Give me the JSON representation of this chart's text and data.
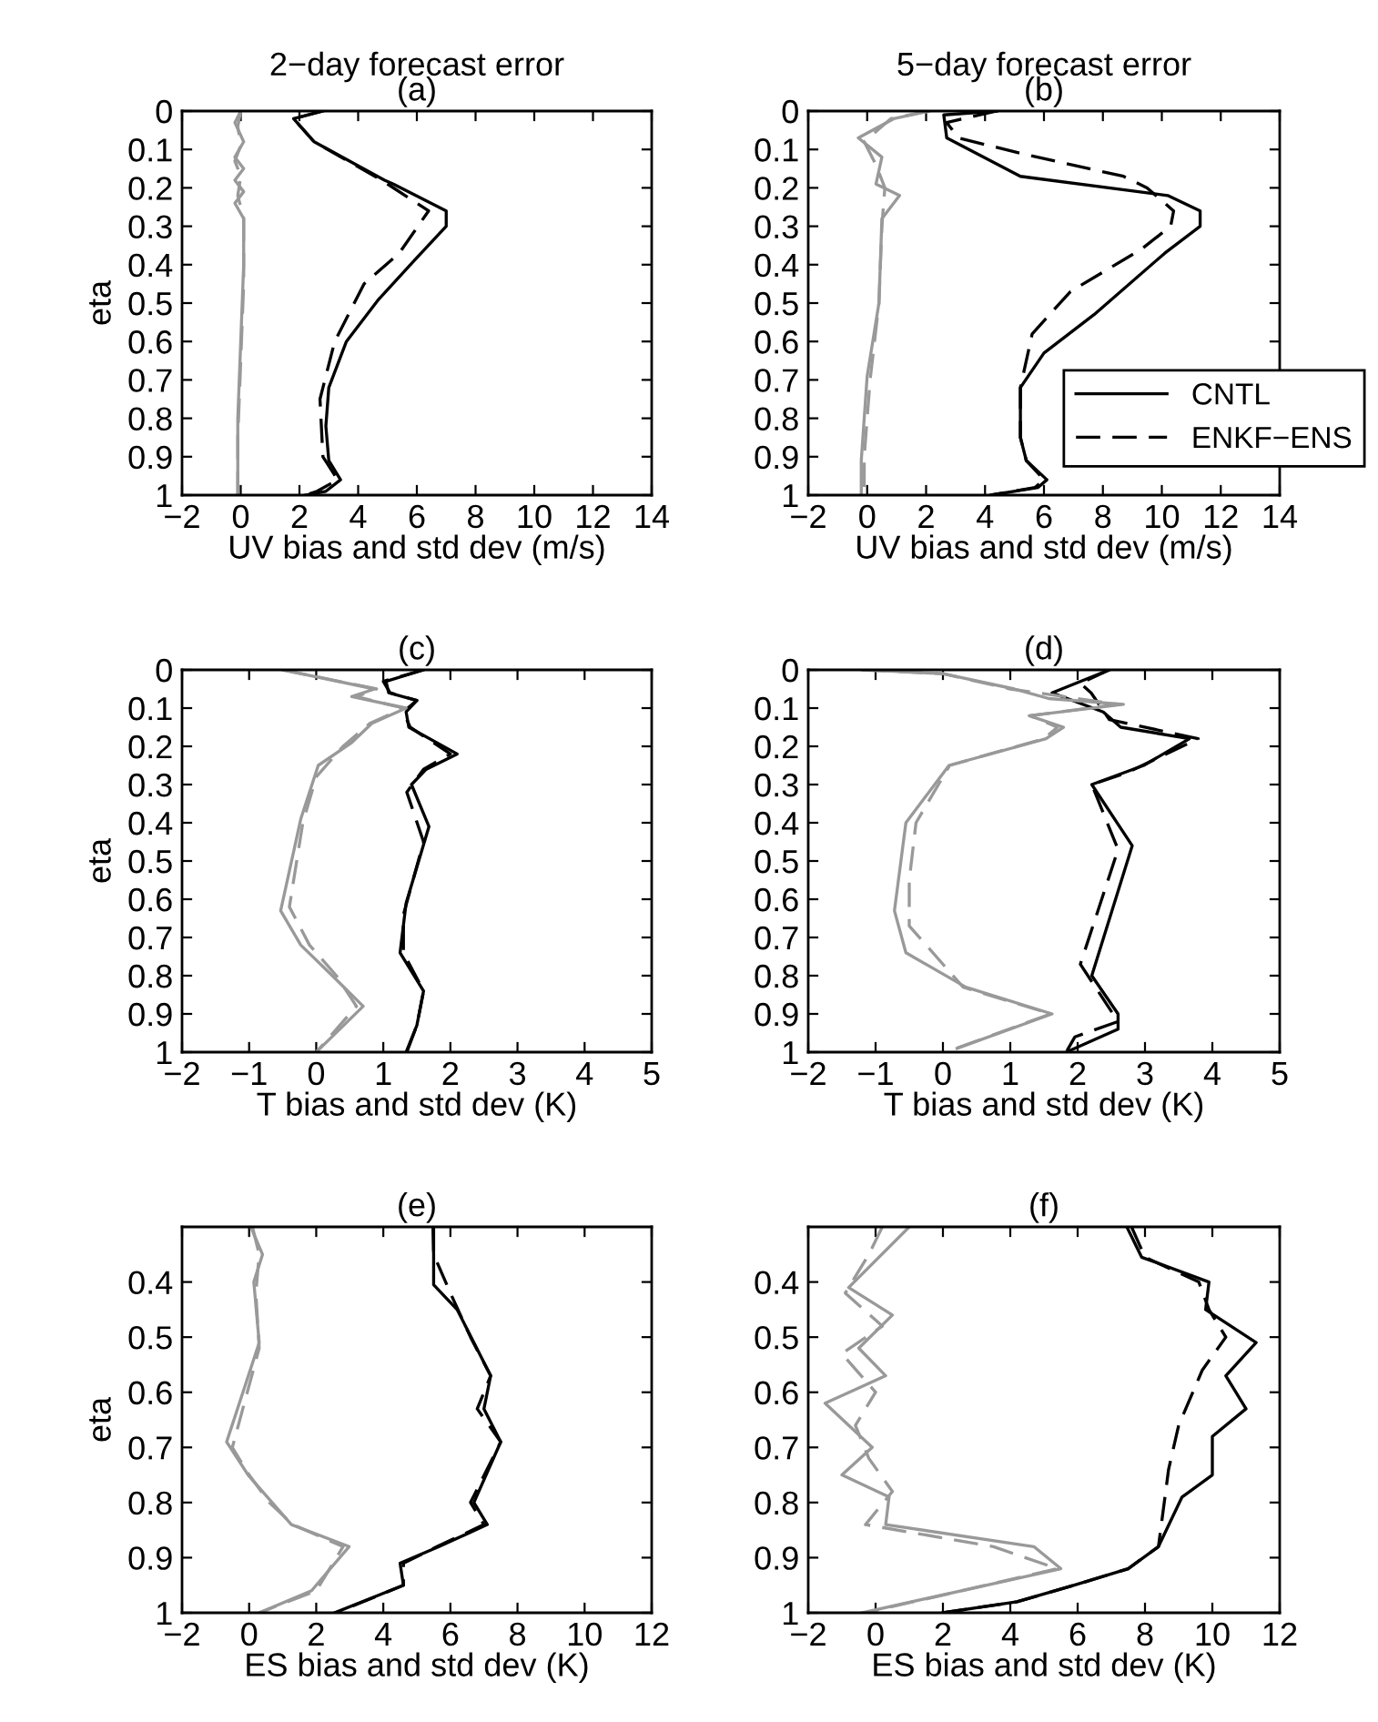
{
  "chart_data": [
    {
      "type": "line",
      "title": "2−day forecast error",
      "subtitle": "(a)",
      "xlabel": "UV bias and std dev (m/s)",
      "ylabel": "eta",
      "xlim": [
        -2,
        14
      ],
      "xticks": [
        -2,
        0,
        2,
        4,
        6,
        8,
        10,
        12,
        14
      ],
      "ylim": [
        1,
        0
      ],
      "yticks": [
        0,
        0.1,
        0.2,
        0.3,
        0.4,
        0.5,
        0.6,
        0.7,
        0.8,
        0.9,
        1
      ],
      "series": [
        {
          "color": "#000000",
          "line_style": "solid",
          "x": [
            2.8,
            1.8,
            2.5,
            4.9,
            5.2,
            7.0,
            7.0,
            5.9,
            4.7,
            3.6,
            3.0,
            2.9,
            3.0,
            3.4,
            2.9,
            2.2
          ],
          "values": [
            0,
            0.02,
            0.08,
            0.18,
            0.19,
            0.26,
            0.3,
            0.39,
            0.49,
            0.6,
            0.72,
            0.82,
            0.91,
            0.96,
            0.99,
            1
          ]
        },
        {
          "color": "#000000",
          "line_style": "dashed",
          "x": [
            2.8,
            1.8,
            2.5,
            4.8,
            6.4,
            5.4,
            4.2,
            3.2,
            2.7,
            2.8,
            3.3,
            2.6,
            2.2
          ],
          "values": [
            0,
            0.02,
            0.08,
            0.18,
            0.26,
            0.37,
            0.45,
            0.6,
            0.75,
            0.9,
            0.96,
            0.99,
            1
          ]
        },
        {
          "color": "#999999",
          "line_style": "solid",
          "x": [
            0,
            -0.2,
            0.1,
            -0.2,
            0.1,
            -0.2,
            0.1,
            -0.2,
            0.1,
            0.1,
            0,
            -0.1,
            -0.1
          ],
          "values": [
            0,
            0.03,
            0.08,
            0.12,
            0.15,
            0.18,
            0.21,
            0.24,
            0.28,
            0.4,
            0.6,
            0.8,
            1
          ]
        },
        {
          "color": "#999999",
          "line_style": "dashed",
          "x": [
            0,
            -0.1,
            0,
            -0.2,
            0,
            -0.1,
            0.1,
            0.1,
            0,
            -0.1,
            -0.1
          ],
          "values": [
            0,
            0.04,
            0.09,
            0.13,
            0.17,
            0.22,
            0.28,
            0.45,
            0.65,
            0.85,
            1
          ]
        }
      ]
    },
    {
      "type": "line",
      "title": "5−day forecast error",
      "subtitle": "(b)",
      "xlabel": "UV bias and std dev (m/s)",
      "xlim": [
        -2,
        14
      ],
      "xticks": [
        -2,
        0,
        2,
        4,
        6,
        8,
        10,
        12,
        14
      ],
      "ylim": [
        1,
        0
      ],
      "yticks": [
        0,
        0.1,
        0.2,
        0.3,
        0.4,
        0.5,
        0.6,
        0.7,
        0.8,
        0.9,
        1
      ],
      "legend": "right",
      "series": [
        {
          "name": "CNTL",
          "color": "#000000",
          "line_style": "solid",
          "x": [
            4.4,
            2.6,
            2.7,
            5.2,
            10.2,
            11.3,
            11.3,
            10.1,
            7.7,
            6.0,
            5.2,
            5.2,
            5.4,
            6.1,
            5.8,
            4.2
          ],
          "values": [
            0,
            0.01,
            0.07,
            0.17,
            0.22,
            0.26,
            0.3,
            0.37,
            0.53,
            0.63,
            0.72,
            0.85,
            0.91,
            0.96,
            0.98,
            1
          ]
        },
        {
          "name": "ENKF−ENS",
          "color": "#000000",
          "line_style": "dashed",
          "x": [
            4.4,
            2.7,
            3.1,
            5.2,
            8.7,
            9.5,
            10.4,
            10.3,
            9.3,
            6.9,
            5.6,
            5.2,
            5.2,
            5.4,
            6.0,
            5.7,
            4.2
          ],
          "values": [
            0,
            0.03,
            0.07,
            0.11,
            0.17,
            0.2,
            0.26,
            0.3,
            0.36,
            0.47,
            0.58,
            0.72,
            0.85,
            0.91,
            0.96,
            0.98,
            1
          ]
        },
        {
          "color": "#999999",
          "line_style": "solid",
          "x": [
            2.1,
            0.9,
            -0.3,
            0.5,
            0.3,
            1.1,
            0.5,
            0.4,
            0,
            -0.2,
            -0.2
          ],
          "values": [
            0,
            0.02,
            0.07,
            0.12,
            0.19,
            0.22,
            0.28,
            0.5,
            0.69,
            0.91,
            1
          ]
        },
        {
          "color": "#999999",
          "line_style": "dashed",
          "x": [
            2.1,
            0.8,
            -0.1,
            0.3,
            0.6,
            0.5,
            0.4,
            0.1,
            -0.1,
            -0.1
          ],
          "values": [
            0,
            0.02,
            0.08,
            0.14,
            0.2,
            0.3,
            0.5,
            0.7,
            0.9,
            1
          ]
        }
      ]
    },
    {
      "type": "line",
      "title": "(c)",
      "xlabel": "T bias and std dev (K)",
      "ylabel": "eta",
      "xlim": [
        -2,
        5
      ],
      "xticks": [
        -2,
        -1,
        0,
        1,
        2,
        3,
        4,
        5
      ],
      "ylim": [
        1,
        0
      ],
      "yticks": [
        0,
        0.1,
        0.2,
        0.3,
        0.4,
        0.5,
        0.6,
        0.7,
        0.8,
        0.9,
        1
      ],
      "series": [
        {
          "color": "#000000",
          "line_style": "solid",
          "x": [
            1.6,
            1.04,
            1.08,
            1.5,
            1.34,
            1.38,
            2.1,
            1.64,
            1.42,
            1.68,
            1.34,
            1.25,
            1.6,
            1.5,
            1.34
          ],
          "values": [
            0,
            0.03,
            0.06,
            0.08,
            0.11,
            0.15,
            0.22,
            0.26,
            0.3,
            0.41,
            0.61,
            0.74,
            0.84,
            0.93,
            1
          ]
        },
        {
          "color": "#000000",
          "line_style": "dashed",
          "x": [
            1.6,
            1.0,
            1.1,
            1.5,
            1.3,
            1.4,
            2.0,
            1.6,
            1.35,
            1.6,
            1.3,
            1.3,
            1.6,
            1.5,
            1.35
          ],
          "values": [
            0,
            0.03,
            0.06,
            0.08,
            0.11,
            0.15,
            0.22,
            0.26,
            0.32,
            0.45,
            0.64,
            0.74,
            0.84,
            0.93,
            1
          ]
        },
        {
          "color": "#999999",
          "line_style": "solid",
          "x": [
            -0.5,
            0.87,
            0.53,
            1.34,
            0.83,
            0.53,
            0.03,
            -0.23,
            -0.53,
            -0.23,
            0.24,
            0.7,
            0
          ],
          "values": [
            0,
            0.05,
            0.07,
            0.1,
            0.14,
            0.19,
            0.25,
            0.39,
            0.63,
            0.72,
            0.8,
            0.88,
            1
          ]
        },
        {
          "color": "#999999",
          "line_style": "dashed",
          "x": [
            -0.5,
            0.9,
            0.6,
            1.3,
            0.8,
            0.4,
            0,
            -0.2,
            -0.4,
            -0.1,
            0.3,
            0.6,
            0
          ],
          "values": [
            0,
            0.05,
            0.07,
            0.1,
            0.14,
            0.2,
            0.28,
            0.4,
            0.62,
            0.72,
            0.8,
            0.88,
            1
          ]
        }
      ]
    },
    {
      "type": "line",
      "title": "(d)",
      "xlabel": "T bias and std dev (K)",
      "xlim": [
        -2,
        5
      ],
      "xticks": [
        -2,
        -1,
        0,
        1,
        2,
        3,
        4,
        5
      ],
      "ylim": [
        1,
        0
      ],
      "yticks": [
        0,
        0.1,
        0.2,
        0.3,
        0.4,
        0.5,
        0.6,
        0.7,
        0.8,
        0.9,
        1
      ],
      "series": [
        {
          "color": "#000000",
          "line_style": "solid",
          "x": [
            2.47,
            1.62,
            2.38,
            2.64,
            3.66,
            2.98,
            2.21,
            2.81,
            2.21,
            2.6,
            2.6,
            1.83
          ],
          "values": [
            0,
            0.06,
            0.11,
            0.15,
            0.18,
            0.25,
            0.3,
            0.46,
            0.8,
            0.9,
            0.94,
            1
          ]
        },
        {
          "color": "#000000",
          "line_style": "dashed",
          "x": [
            2.47,
            2.04,
            2.2,
            2.47,
            3.79,
            2.72,
            2.21,
            2.6,
            2.04,
            2.6,
            1.96,
            1.83
          ],
          "values": [
            0,
            0.035,
            0.06,
            0.13,
            0.18,
            0.27,
            0.3,
            0.47,
            0.77,
            0.92,
            0.96,
            1
          ]
        },
        {
          "color": "#999999",
          "line_style": "solid",
          "x": [
            -1.2,
            0,
            1.06,
            1.57,
            2.68,
            1.28,
            1.79,
            1.53,
            0.09,
            -0.55,
            -0.72,
            -0.55,
            0.34,
            1.62,
            0.21
          ],
          "values": [
            0,
            0.01,
            0.05,
            0.075,
            0.09,
            0.12,
            0.15,
            0.18,
            0.25,
            0.4,
            0.63,
            0.74,
            0.83,
            0.9,
            0.99
          ]
        },
        {
          "color": "#999999",
          "line_style": "dashed",
          "x": [
            -1.2,
            0,
            1.0,
            2.6,
            1.3,
            1.7,
            1.5,
            0.1,
            -0.4,
            -0.5,
            -0.5,
            0.3,
            1.6,
            0.2
          ],
          "values": [
            0,
            0.01,
            0.05,
            0.09,
            0.12,
            0.15,
            0.18,
            0.25,
            0.4,
            0.55,
            0.67,
            0.83,
            0.9,
            0.99
          ]
        }
      ]
    },
    {
      "type": "line",
      "title": "(e)",
      "xlabel": "ES bias and std dev (K)",
      "ylabel": "eta",
      "xlim": [
        -2,
        12
      ],
      "xticks": [
        -2,
        0,
        2,
        4,
        6,
        8,
        10,
        12
      ],
      "ylim": [
        1,
        0.3
      ],
      "yticks": [
        0.4,
        0.5,
        0.6,
        0.7,
        0.8,
        0.9,
        1
      ],
      "series": [
        {
          "color": "#000000",
          "line_style": "solid",
          "x": [
            5.48,
            5.5,
            5.5,
            6.2,
            7.2,
            7.0,
            7.5,
            6.7,
            7.1,
            5.66,
            4.5,
            4.6,
            2.55
          ],
          "values": [
            0.3,
            0.35,
            0.405,
            0.45,
            0.57,
            0.63,
            0.69,
            0.8,
            0.84,
            0.88,
            0.91,
            0.95,
            1
          ]
        },
        {
          "color": "#000000",
          "line_style": "dashed",
          "x": [
            5.5,
            5.5,
            6.0,
            6.6,
            7.2,
            6.8,
            7.5,
            6.6,
            7.0,
            5.6,
            4.6,
            4.6,
            2.6
          ],
          "values": [
            0.3,
            0.35,
            0.42,
            0.5,
            0.57,
            0.63,
            0.69,
            0.8,
            0.84,
            0.88,
            0.91,
            0.95,
            1
          ]
        },
        {
          "color": "#999999",
          "line_style": "solid",
          "x": [
            0.05,
            0.4,
            0.14,
            0.3,
            -0.67,
            -0.03,
            1.26,
            2.98,
            1.86,
            0.31
          ],
          "values": [
            0.3,
            0.35,
            0.4,
            0.51,
            0.69,
            0.75,
            0.84,
            0.88,
            0.96,
            1
          ]
        },
        {
          "color": "#999999",
          "line_style": "dashed",
          "x": [
            0.1,
            0.3,
            0.2,
            0.3,
            -0.5,
            0.0,
            0.6,
            1.3,
            2.8,
            2.0,
            0.3
          ],
          "values": [
            0.3,
            0.35,
            0.42,
            0.52,
            0.7,
            0.75,
            0.8,
            0.84,
            0.88,
            0.96,
            1
          ]
        }
      ]
    },
    {
      "type": "line",
      "title": "(f)",
      "xlabel": "ES bias and std dev (K)",
      "xlim": [
        -2,
        12
      ],
      "xticks": [
        -2,
        0,
        2,
        4,
        6,
        8,
        10,
        12
      ],
      "ylim": [
        1,
        0.3
      ],
      "yticks": [
        0.4,
        0.5,
        0.6,
        0.7,
        0.8,
        0.9,
        1
      ],
      "series": [
        {
          "color": "#000000",
          "line_style": "solid",
          "x": [
            7.46,
            7.9,
            9.9,
            9.8,
            11.3,
            10.4,
            11.0,
            10.0,
            10.0,
            9.1,
            8.4,
            7.5,
            5.9,
            4.2,
            2.0
          ],
          "values": [
            0.3,
            0.355,
            0.4,
            0.45,
            0.51,
            0.57,
            0.63,
            0.68,
            0.75,
            0.79,
            0.88,
            0.92,
            0.95,
            0.98,
            1
          ]
        },
        {
          "color": "#000000",
          "line_style": "dashed",
          "x": [
            7.6,
            8.0,
            9.6,
            9.9,
            10.4,
            9.7,
            9.0,
            8.7,
            8.4,
            7.5,
            5.9,
            4.2,
            2.0
          ],
          "values": [
            0.3,
            0.355,
            0.4,
            0.45,
            0.5,
            0.56,
            0.66,
            0.74,
            0.88,
            0.92,
            0.95,
            0.98,
            1
          ]
        },
        {
          "color": "#999999",
          "line_style": "solid",
          "x": [
            1.0,
            -0.8,
            0.5,
            -0.5,
            0.3,
            -1.5,
            -0.1,
            -1.0,
            0.4,
            0.3,
            4.7,
            5.5,
            -0.4
          ],
          "values": [
            0.3,
            0.41,
            0.46,
            0.52,
            0.57,
            0.62,
            0.7,
            0.75,
            0.79,
            0.84,
            0.88,
            0.92,
            1
          ]
        },
        {
          "color": "#999999",
          "line_style": "dashed",
          "x": [
            0.2,
            -0.2,
            -0.9,
            0.2,
            -1.0,
            0.0,
            -0.6,
            -0.2,
            0.5,
            -0.3,
            3.5,
            5.4,
            -0.3
          ],
          "values": [
            0.3,
            0.35,
            0.42,
            0.48,
            0.53,
            0.6,
            0.66,
            0.72,
            0.78,
            0.84,
            0.88,
            0.92,
            1
          ]
        }
      ]
    }
  ]
}
